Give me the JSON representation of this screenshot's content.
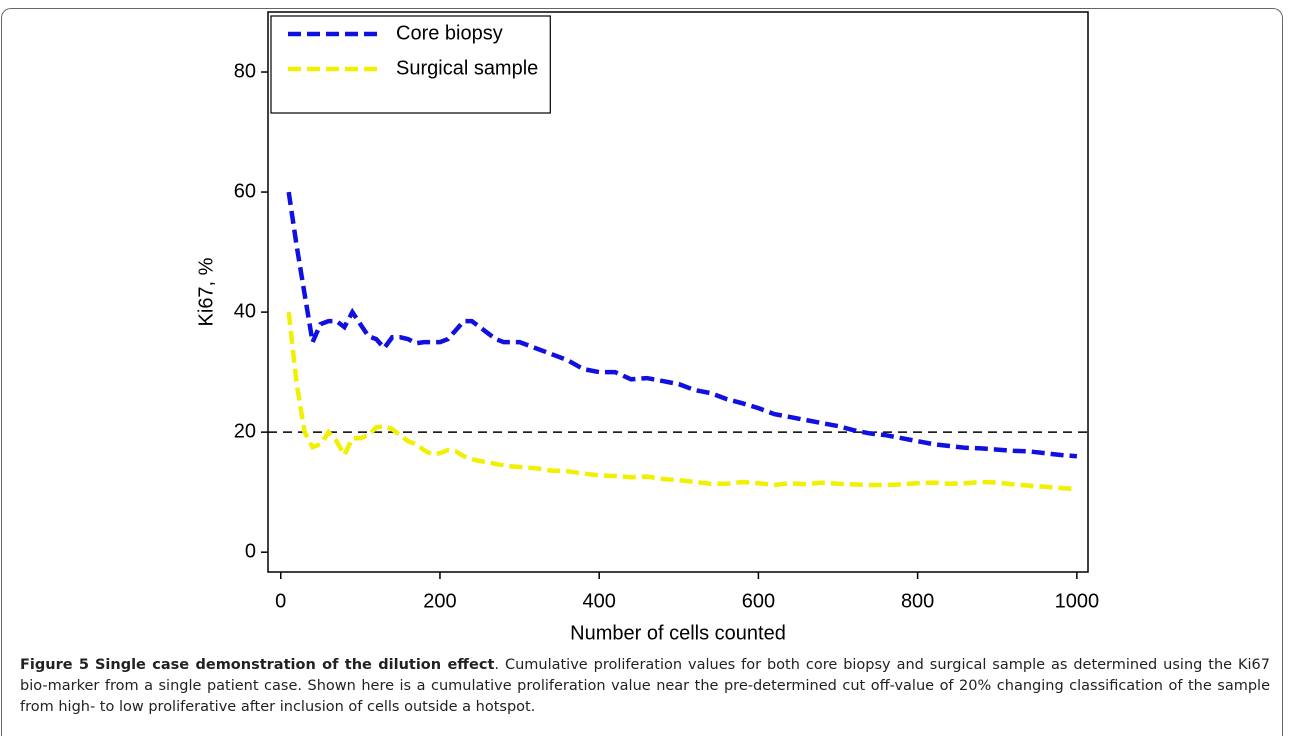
{
  "chart_data": {
    "type": "line",
    "xlabel": "Number of cells counted",
    "ylabel": "Ki67, %",
    "xlim": [
      -16,
      1014
    ],
    "xticks": [
      0,
      200,
      400,
      600,
      800,
      1000
    ],
    "ylim": [
      -3.3,
      90
    ],
    "yticks": [
      0,
      20,
      40,
      60,
      80
    ],
    "legend": "top-left",
    "reference_line": {
      "value": 20,
      "color": "#000000"
    },
    "x": [
      10,
      20,
      30,
      40,
      50,
      60,
      70,
      80,
      90,
      100,
      110,
      120,
      130,
      140,
      150,
      160,
      170,
      180,
      190,
      200,
      210,
      220,
      230,
      240,
      250,
      260,
      270,
      280,
      290,
      300,
      320,
      340,
      360,
      380,
      400,
      420,
      440,
      460,
      480,
      500,
      520,
      540,
      560,
      580,
      600,
      620,
      640,
      660,
      680,
      700,
      720,
      740,
      760,
      780,
      800,
      820,
      840,
      860,
      880,
      900,
      920,
      940,
      960,
      980,
      1000
    ],
    "series": [
      {
        "name": "Core biopsy",
        "color": "#1010e0",
        "values": [
          60,
          51,
          43,
          35,
          38,
          38.5,
          38.5,
          37.5,
          40,
          38,
          36,
          35.5,
          34,
          35.8,
          35.8,
          35.5,
          34.8,
          35,
          35,
          35,
          35.5,
          37,
          38.5,
          38.5,
          37.5,
          36.5,
          35.5,
          35,
          35,
          35,
          34,
          33,
          32,
          30.5,
          30,
          30,
          28.8,
          29,
          28.5,
          28,
          27,
          26.5,
          25.5,
          24.8,
          24,
          23,
          22.5,
          22,
          21.5,
          21,
          20.3,
          19.8,
          19.5,
          19,
          18.5,
          18,
          17.7,
          17.4,
          17.3,
          17.1,
          16.9,
          16.8,
          16.5,
          16.2,
          16
        ]
      },
      {
        "name": "Surgical sample",
        "color": "#f0f000",
        "values": [
          40,
          28,
          20,
          17.5,
          18,
          20,
          18.5,
          16.2,
          19,
          19,
          19.5,
          20.8,
          21,
          20.5,
          19.5,
          18.5,
          18,
          17,
          16.3,
          16.5,
          17,
          16.8,
          16,
          15.5,
          15.2,
          15,
          14.7,
          14.5,
          14.3,
          14.2,
          14,
          13.6,
          13.5,
          13.1,
          12.8,
          12.7,
          12.5,
          12.6,
          12.2,
          12,
          11.7,
          11.4,
          11.4,
          11.7,
          11.5,
          11.2,
          11.5,
          11.3,
          11.6,
          11.4,
          11.3,
          11.2,
          11.2,
          11.3,
          11.5,
          11.6,
          11.4,
          11.5,
          11.7,
          11.6,
          11.3,
          11.1,
          10.9,
          10.7,
          10.5
        ]
      }
    ]
  },
  "caption": {
    "label": "Figure 5",
    "title": "Single case demonstration of the dilution effect",
    "text": ". Cumulative proliferation values for both core biopsy and surgical sample as determined using the Ki67 bio-marker from a single patient case. Shown here is a cumulative proliferation value near the pre-determined cut off-value of 20% changing classification of the sample from high- to low proliferative after inclusion of cells outside a hotspot."
  }
}
